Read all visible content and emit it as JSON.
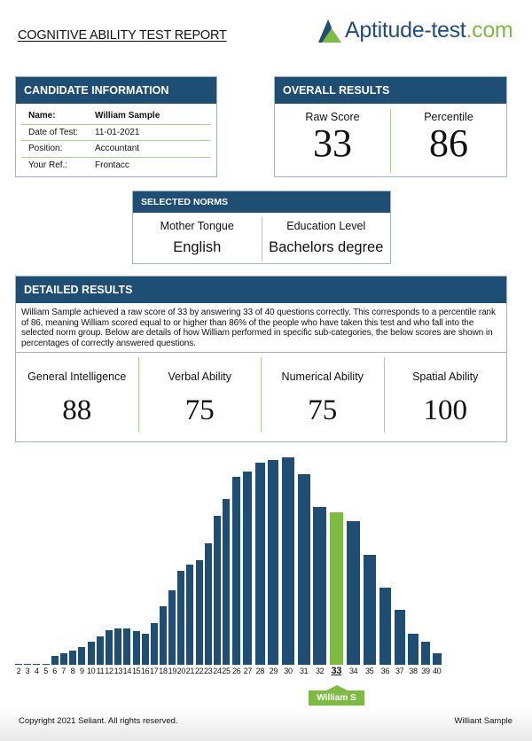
{
  "header": {
    "title": "COGNITIVE ABILITY TEST REPORT",
    "logo_text": "Aptitude-test",
    "logo_suffix": ".com",
    "logo_icon": "triangle-mountain-icon"
  },
  "candidate": {
    "title": "CANDIDATE INFORMATION",
    "rows": [
      {
        "label": "Name:",
        "value": "William Sample"
      },
      {
        "label": "Date of Test:",
        "value": "11-01-2021"
      },
      {
        "label": "Position:",
        "value": "Accountant"
      },
      {
        "label": "Your Ref.:",
        "value": "Frontacc"
      }
    ]
  },
  "overall": {
    "title": "OVERALL RESULTS",
    "raw_label": "Raw Score",
    "raw_value": "33",
    "pct_label": "Percentile",
    "pct_value": "86"
  },
  "norms": {
    "title": "SELECTED NORMS",
    "items": [
      {
        "label": "Mother Tongue",
        "value": "English"
      },
      {
        "label": "Education Level",
        "value": "Bachelors degree"
      }
    ]
  },
  "detailed": {
    "title": "DETAILED RESULTS",
    "text": "William Sample achieved a raw score of 33 by answering 33 of 40 questions correctly. This corresponds to a percentile rank of 86, meaning William scored equal to or higher than 86% of the people who have taken this test and who fall into the selected norm group. Below are details of how William performed in specific sub-categories, the below scores are shown in percentages of correctly answered questions.",
    "scores": [
      {
        "label": "General Intelligence",
        "value": "88"
      },
      {
        "label": "Verbal Ability",
        "value": "75"
      },
      {
        "label": "Numerical Ability",
        "value": "75"
      },
      {
        "label": "Spatial Ability",
        "value": "100"
      }
    ]
  },
  "chart_data": {
    "type": "bar",
    "categories": [
      2,
      3,
      4,
      5,
      6,
      7,
      8,
      9,
      10,
      11,
      12,
      13,
      14,
      15,
      16,
      17,
      18,
      19,
      20,
      21,
      22,
      23,
      24,
      25,
      26,
      27,
      28,
      29,
      30,
      31,
      32,
      33,
      34,
      35,
      36,
      37,
      38,
      39,
      40
    ],
    "values": [
      0.3,
      0.3,
      0.3,
      0.3,
      4.3,
      5.4,
      7,
      8.4,
      11,
      13.5,
      16.8,
      17.5,
      17.5,
      16.2,
      14.8,
      20.2,
      28,
      36.1,
      45.4,
      48.1,
      50.6,
      58.7,
      72,
      80,
      90.6,
      93.3,
      97.3,
      98.6,
      100,
      91.9,
      76,
      73.3,
      69.3,
      53.2,
      37.3,
      26.6,
      14.8,
      11,
      5.4
    ],
    "highlight": 33,
    "highlight_label": "William S",
    "bar_color": "#1f4e75",
    "highlight_color": "#7dbb42",
    "grid": false
  },
  "footer": {
    "copyright": "Copyright 2021 Seliant. All rights reserved.",
    "name": "Williant Sample"
  }
}
